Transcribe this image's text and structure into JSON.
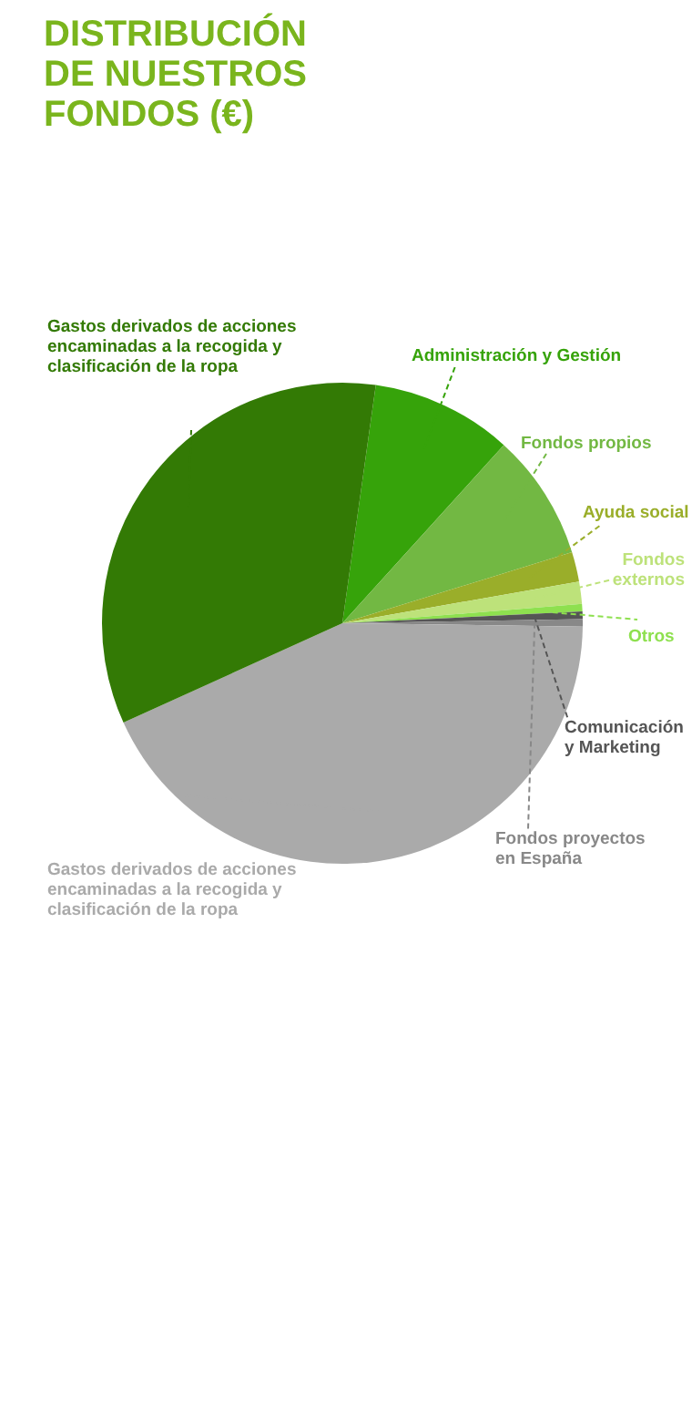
{
  "chart_data": {
    "type": "pie",
    "title": "DISTRIBUCIÓN DE NUESTROS FONDOS (€)",
    "categories": [
      "Administración y Gestión",
      "Fondos propios",
      "Ayuda social",
      "Fondos externos",
      "Otros",
      "Comunicación y Marketing",
      "Fondos proyectos en  España",
      "Gastos derivados de acciones encaminadas a la recogida y clasificación de la ropa",
      "Gastos derivados de acciones encaminadas a la recogida y clasificación de la ropa"
    ],
    "values": [
      9.5,
      8.5,
      2,
      1.5,
      0.5,
      0.5,
      0.5,
      43,
      34
    ],
    "colors": [
      "#36a30a",
      "#72b843",
      "#9aae2a",
      "#bde27a",
      "#8ee04f",
      "#555555",
      "#888888",
      "#aaaaaa",
      "#337a05"
    ]
  }
}
